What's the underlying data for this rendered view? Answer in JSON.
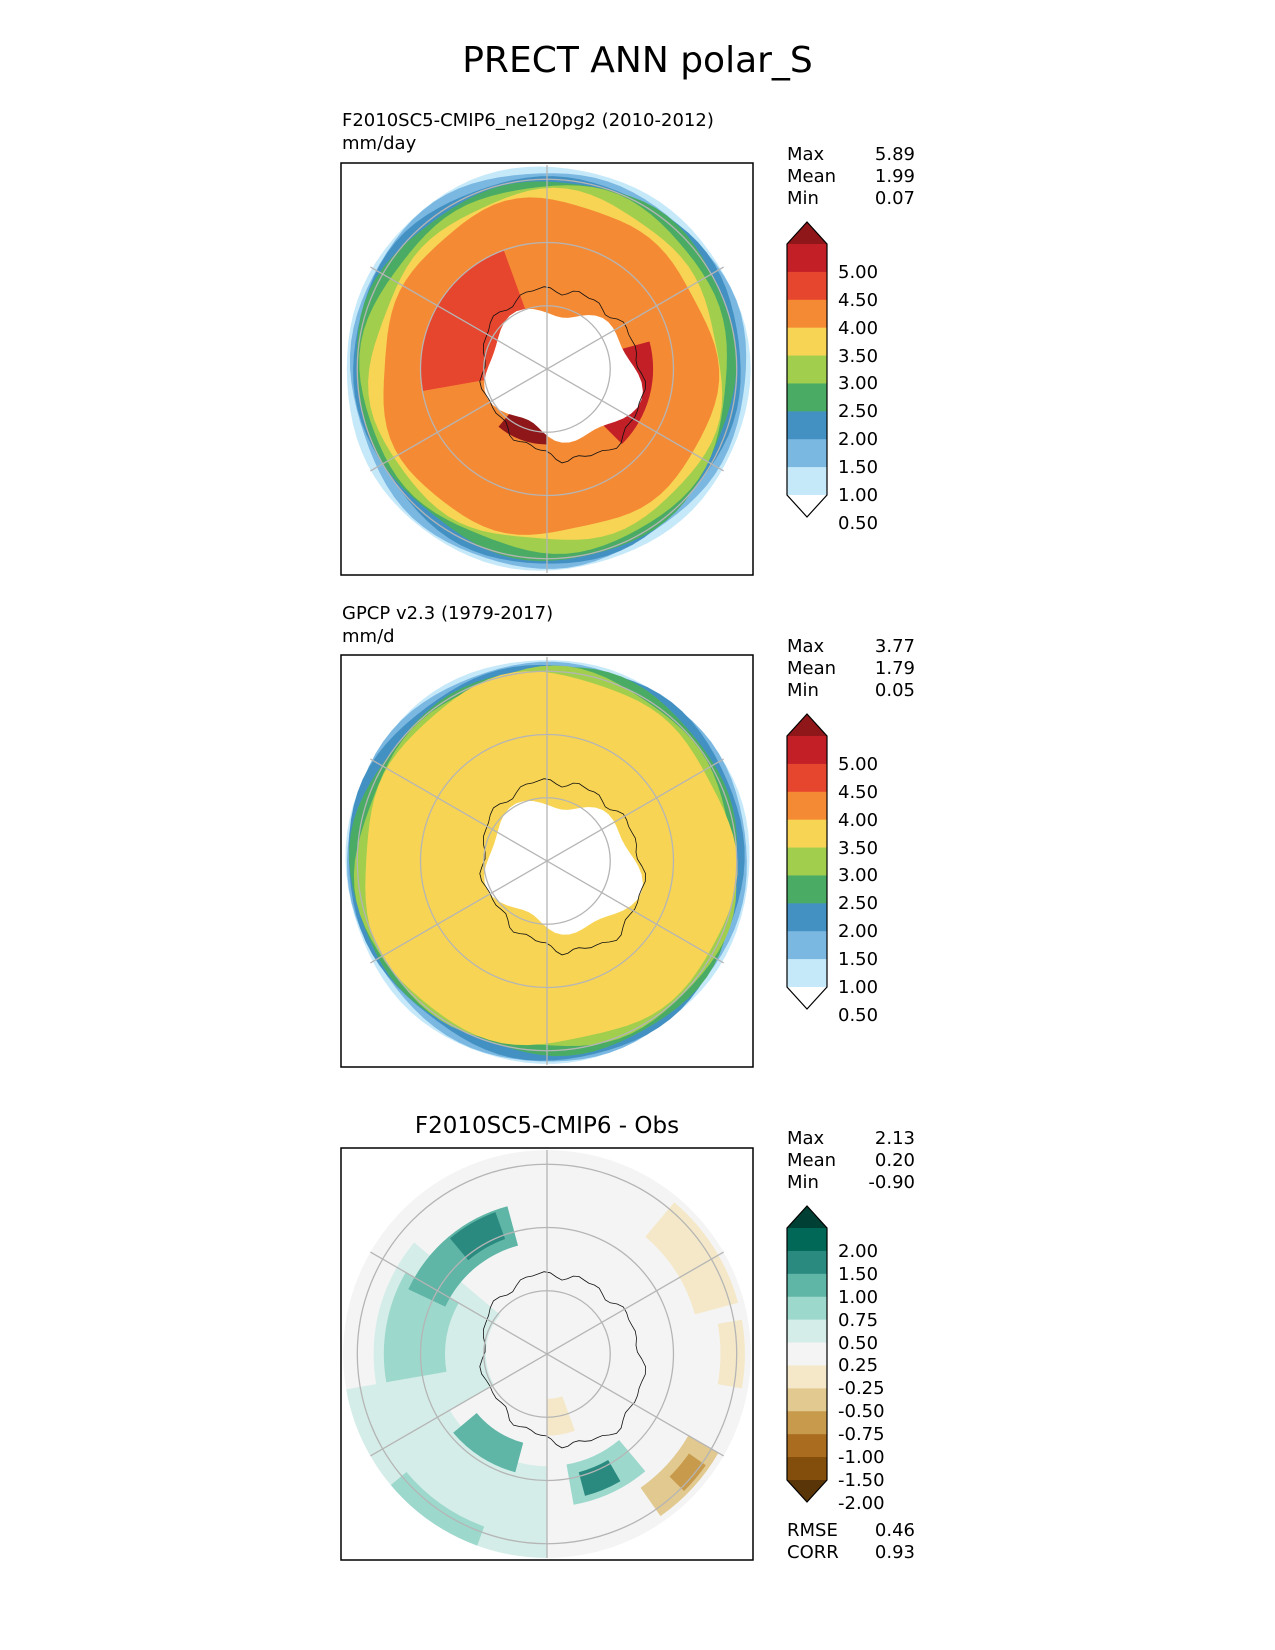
{
  "page": {
    "title": "PRECT ANN polar_S"
  },
  "colors": {
    "precip": [
      "#ffffff",
      "#c6e9fa",
      "#7ab8e2",
      "#4391c3",
      "#4aac64",
      "#a2ce4e",
      "#f7d454",
      "#f58a35",
      "#e6452e",
      "#c21f27",
      "#8f1619"
    ],
    "diff": [
      "#5a3507",
      "#834d0b",
      "#aa6d20",
      "#c89a4b",
      "#e1c98f",
      "#f4e8c8",
      "#f4f4f4",
      "#d4ede8",
      "#9dd8cd",
      "#5fb5a6",
      "#2a8a7f",
      "#016757",
      "#003f33"
    ]
  },
  "chart_data": [
    {
      "type": "heatmap",
      "projection": "south-polar-stereographic",
      "title": "F2010SC5-CMIP6_ne120pg2 (2010-2012)",
      "units": "mm/day",
      "stats": {
        "max": "5.89",
        "mean": "1.99",
        "min": "0.07"
      },
      "colorbar": {
        "levels": [
          "0.50",
          "1.00",
          "1.50",
          "2.00",
          "2.50",
          "3.00",
          "3.50",
          "4.00",
          "4.50",
          "5.00"
        ],
        "palette": "precip"
      },
      "rings": [
        {
          "width": 0.37,
          "level": 10,
          "at": 180,
          "len": 40,
          "amp": 0.025,
          "lmin": 0.37
        },
        {
          "width": 0.52,
          "level": 9,
          "at": 75,
          "len": 60,
          "amp": 0.03,
          "lmin": 0.52
        },
        {
          "width": 0.62,
          "level": 8,
          "at": 260,
          "len": 80,
          "amp": 0.03,
          "lmin": 0.62
        },
        {
          "width": 0.8,
          "level": 7,
          "at": 0,
          "len": 360,
          "amp": 0.03,
          "lmin": 0.82
        },
        {
          "width": 0.85,
          "level": 6,
          "at": 0,
          "len": 360,
          "amp": 0.03,
          "lmin": 0.86
        },
        {
          "width": 0.88,
          "level": 5,
          "at": 0,
          "len": 360,
          "amp": 0.025,
          "lmin": 0.9
        },
        {
          "width": 0.92,
          "level": 4,
          "at": 0,
          "len": 360,
          "amp": 0.025,
          "lmin": 0.93
        },
        {
          "width": 0.95,
          "level": 3,
          "at": 0,
          "len": 360,
          "amp": 0.02,
          "lmin": 0.95
        },
        {
          "width": 0.98,
          "level": 2,
          "at": 0,
          "len": 360,
          "amp": 0.02,
          "lmin": 0.97
        },
        {
          "width": 0.99,
          "level": 1,
          "at": 0,
          "len": 360,
          "amp": 0.01,
          "lmin": 0.99
        },
        {
          "width": 1.0,
          "level": 0,
          "at": 0,
          "len": 360,
          "amp": 0.0,
          "lmin": 1.0
        }
      ]
    },
    {
      "type": "heatmap",
      "projection": "south-polar-stereographic",
      "title": "GPCP v2.3 (1979-2017)",
      "units": "mm/d",
      "stats": {
        "max": "3.77",
        "mean": "1.79",
        "min": "0.05"
      },
      "colorbar": {
        "levels": [
          "0.50",
          "1.00",
          "1.50",
          "2.00",
          "2.50",
          "3.00",
          "3.50",
          "4.00",
          "4.50",
          "5.00"
        ],
        "palette": "precip"
      },
      "rings": [
        {
          "width": 0.28,
          "level": 7,
          "at": 30,
          "len": 60,
          "amp": 0.03,
          "lmin": 0.28
        },
        {
          "width": 0.26,
          "level": 7,
          "at": 140,
          "len": 40,
          "amp": 0.03,
          "lmin": 0.26
        },
        {
          "width": 0.9,
          "level": 6,
          "at": 0,
          "len": 360,
          "amp": 0.03,
          "lmin": 0.91
        },
        {
          "width": 0.9,
          "level": 5,
          "at": 0,
          "len": 360,
          "amp": 0.03,
          "lmin": 0.93
        },
        {
          "width": 0.93,
          "level": 4,
          "at": 0,
          "len": 360,
          "amp": 0.025,
          "lmin": 0.95
        },
        {
          "width": 0.96,
          "level": 3,
          "at": 0,
          "len": 360,
          "amp": 0.02,
          "lmin": 0.97
        },
        {
          "width": 0.98,
          "level": 2,
          "at": 0,
          "len": 360,
          "amp": 0.015,
          "lmin": 0.98
        },
        {
          "width": 0.99,
          "level": 1,
          "at": 0,
          "len": 360,
          "amp": 0.01,
          "lmin": 0.99
        },
        {
          "width": 1.0,
          "level": 0,
          "at": 0,
          "len": 360,
          "amp": 0.0,
          "lmin": 1.0
        }
      ]
    },
    {
      "type": "heatmap",
      "projection": "south-polar-stereographic",
      "title": "F2010SC5-CMIP6 - Obs",
      "units": "",
      "stats": {
        "max": "2.13",
        "mean": "0.20",
        "min": "-0.90"
      },
      "metrics": {
        "rmse": "0.46",
        "corr": "0.93"
      },
      "colorbar": {
        "levels": [
          "-2.00",
          "-1.50",
          "-1.00",
          "-0.75",
          "-0.50",
          "-0.25",
          "0.25",
          "0.50",
          "0.75",
          "1.00",
          "1.50",
          "2.00"
        ],
        "palette": "diff"
      },
      "rings": [
        {
          "width": 1.0,
          "level": 6,
          "at": 0,
          "len": 360,
          "amp": 0.0,
          "lmin": 1.0
        }
      ],
      "patches": [
        {
          "at": 180,
          "len": 80,
          "r0": 0.55,
          "r1": 1.0,
          "level": 7
        },
        {
          "at": 240,
          "len": 70,
          "r0": 0.3,
          "r1": 0.85,
          "level": 7
        },
        {
          "at": 260,
          "len": 40,
          "r0": 0.5,
          "r1": 0.8,
          "level": 8
        },
        {
          "at": 295,
          "len": 50,
          "r0": 0.55,
          "r1": 0.75,
          "level": 9
        },
        {
          "at": 320,
          "len": 20,
          "r0": 0.6,
          "r1": 0.74,
          "level": 10
        },
        {
          "at": 195,
          "len": 35,
          "r0": 0.45,
          "r1": 0.6,
          "level": 9
        },
        {
          "at": 140,
          "len": 30,
          "r0": 0.55,
          "r1": 0.75,
          "level": 8
        },
        {
          "at": 150,
          "len": 15,
          "r0": 0.6,
          "r1": 0.72,
          "level": 10
        },
        {
          "at": 120,
          "len": 25,
          "r0": 0.8,
          "r1": 0.97,
          "level": 4
        },
        {
          "at": 125,
          "len": 10,
          "r0": 0.85,
          "r1": 0.95,
          "level": 3
        },
        {
          "at": 80,
          "len": 20,
          "r0": 0.85,
          "r1": 0.97,
          "level": 5
        },
        {
          "at": 40,
          "len": 35,
          "r0": 0.75,
          "r1": 0.97,
          "level": 5
        },
        {
          "at": 160,
          "len": 20,
          "r0": 0.22,
          "r1": 0.4,
          "level": 5
        },
        {
          "at": 200,
          "len": 30,
          "r0": 0.9,
          "r1": 1.0,
          "level": 8
        }
      ]
    }
  ],
  "stat_labels": {
    "max": "Max",
    "mean": "Mean",
    "min": "Min",
    "rmse": "RMSE",
    "corr": "CORR"
  }
}
